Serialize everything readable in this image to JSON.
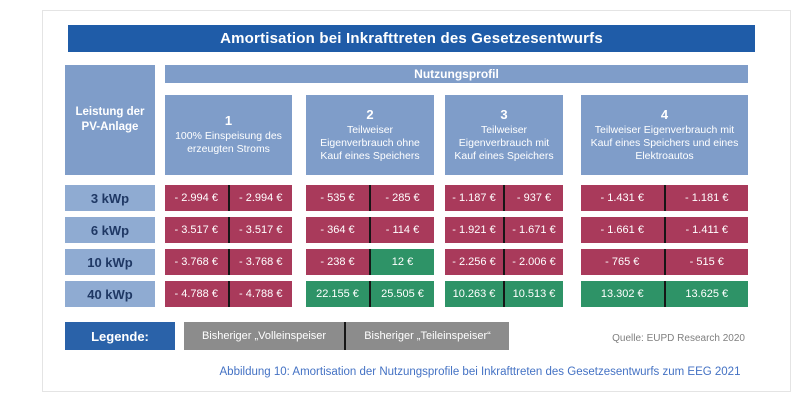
{
  "title": "Amortisation bei Inkrafttreten des Gesetzesentwurfs",
  "table": {
    "row_header": "Leistung der PV-Anlage",
    "group_header": "Nutzungsprofil",
    "columns": [
      {
        "number": "1",
        "label": "100% Einspeisung des erzeugten Stroms"
      },
      {
        "number": "2",
        "label": "Teilweiser Eigenverbrauch ohne Kauf eines Speichers"
      },
      {
        "number": "3",
        "label": "Teilweiser Eigenverbrauch mit Kauf eines Speichers"
      },
      {
        "number": "4",
        "label": "Teilweiser Eigenverbrauch mit Kauf eines Speichers und eines Elektroautos"
      }
    ],
    "rows": [
      {
        "label": "3 kWp",
        "cells": [
          {
            "text": "- 2.994 €",
            "tone": "negative"
          },
          {
            "text": "- 2.994 €",
            "tone": "negative"
          },
          {
            "text": "- 535 €",
            "tone": "negative"
          },
          {
            "text": "- 285 €",
            "tone": "negative"
          },
          {
            "text": "- 1.187 €",
            "tone": "negative"
          },
          {
            "text": "- 937 €",
            "tone": "negative"
          },
          {
            "text": "- 1.431 €",
            "tone": "negative"
          },
          {
            "text": "- 1.181 €",
            "tone": "negative"
          }
        ]
      },
      {
        "label": "6 kWp",
        "cells": [
          {
            "text": "- 3.517 €",
            "tone": "negative"
          },
          {
            "text": "- 3.517 €",
            "tone": "negative"
          },
          {
            "text": "- 364 €",
            "tone": "negative"
          },
          {
            "text": "- 114 €",
            "tone": "negative"
          },
          {
            "text": "- 1.921 €",
            "tone": "negative"
          },
          {
            "text": "- 1.671 €",
            "tone": "negative"
          },
          {
            "text": "- 1.661 €",
            "tone": "negative"
          },
          {
            "text": "- 1.411 €",
            "tone": "negative"
          }
        ]
      },
      {
        "label": "10 kWp",
        "cells": [
          {
            "text": "- 3.768 €",
            "tone": "negative"
          },
          {
            "text": "- 3.768 €",
            "tone": "negative"
          },
          {
            "text": "- 238 €",
            "tone": "negative"
          },
          {
            "text": "12 €",
            "tone": "positive"
          },
          {
            "text": "- 2.256 €",
            "tone": "negative"
          },
          {
            "text": "- 2.006 €",
            "tone": "negative"
          },
          {
            "text": "- 765 €",
            "tone": "negative"
          },
          {
            "text": "- 515 €",
            "tone": "negative"
          }
        ]
      },
      {
        "label": "40 kWp",
        "cells": [
          {
            "text": "- 4.788 €",
            "tone": "negative"
          },
          {
            "text": "- 4.788 €",
            "tone": "negative"
          },
          {
            "text": "22.155 €",
            "tone": "positive"
          },
          {
            "text": "25.505 €",
            "tone": "positive"
          },
          {
            "text": "10.263 €",
            "tone": "positive"
          },
          {
            "text": "10.513 €",
            "tone": "positive"
          },
          {
            "text": "13.302 €",
            "tone": "positive"
          },
          {
            "text": "13.625 €",
            "tone": "positive"
          }
        ]
      }
    ]
  },
  "legend": {
    "title": "Legende:",
    "items": [
      "Bisheriger „Volleinspeiser",
      "Bisheriger „Teileinspeiser“"
    ]
  },
  "source": "Quelle: EUPD Research 2020",
  "caption": "Abbildung 10: Amortisation der Nutzungsprofile bei Inkrafttreten des Gesetzesentwurfs zum EEG 2021",
  "colors": {
    "negative": "#a93a5b",
    "positive": "#2e9367",
    "title_bar": "#1f5ca8",
    "header_blue": "#7f9dc9",
    "row_label_blue": "#8fabd2",
    "legend_blue": "#2a62a9",
    "legend_gray": "#8c8c8c",
    "caption_blue": "#4472c4"
  },
  "chart_data": {
    "type": "table",
    "title": "Amortisation bei Inkrafttreten des Gesetzesentwurfs",
    "group_header": "Nutzungsprofil",
    "row_header": "Leistung der PV-Anlage",
    "columns": [
      "1 – 100% Einspeisung des erzeugten Stroms",
      "2 – Teilweiser Eigenverbrauch ohne Kauf eines Speichers",
      "3 – Teilweiser Eigenverbrauch mit Kauf eines Speichers",
      "4 – Teilweiser Eigenverbrauch mit Kauf eines Speichers und eines Elektroautos"
    ],
    "sub_columns": [
      "Bisheriger „Volleinspeiser",
      "Bisheriger „Teileinspeiser“"
    ],
    "rows": [
      {
        "label": "3 kWp",
        "values_eur": [
          [
            -2994,
            -2994
          ],
          [
            -535,
            -285
          ],
          [
            -1187,
            -937
          ],
          [
            -1431,
            -1181
          ]
        ]
      },
      {
        "label": "6 kWp",
        "values_eur": [
          [
            -3517,
            -3517
          ],
          [
            -364,
            -114
          ],
          [
            -1921,
            -1671
          ],
          [
            -1661,
            -1411
          ]
        ]
      },
      {
        "label": "10 kWp",
        "values_eur": [
          [
            -3768,
            -3768
          ],
          [
            -238,
            12
          ],
          [
            -2256,
            -2006
          ],
          [
            -765,
            -515
          ]
        ]
      },
      {
        "label": "40 kWp",
        "values_eur": [
          [
            -4788,
            -4788
          ],
          [
            22155,
            25505
          ],
          [
            10263,
            10513
          ],
          [
            13302,
            13625
          ]
        ]
      }
    ],
    "value_color_rule": "negative amounts shown on red, positive amounts on green",
    "source": "Quelle: EUPD Research 2020",
    "caption": "Abbildung 10: Amortisation der Nutzungsprofile bei Inkrafttreten des Gesetzesentwurfs zum EEG 2021"
  }
}
